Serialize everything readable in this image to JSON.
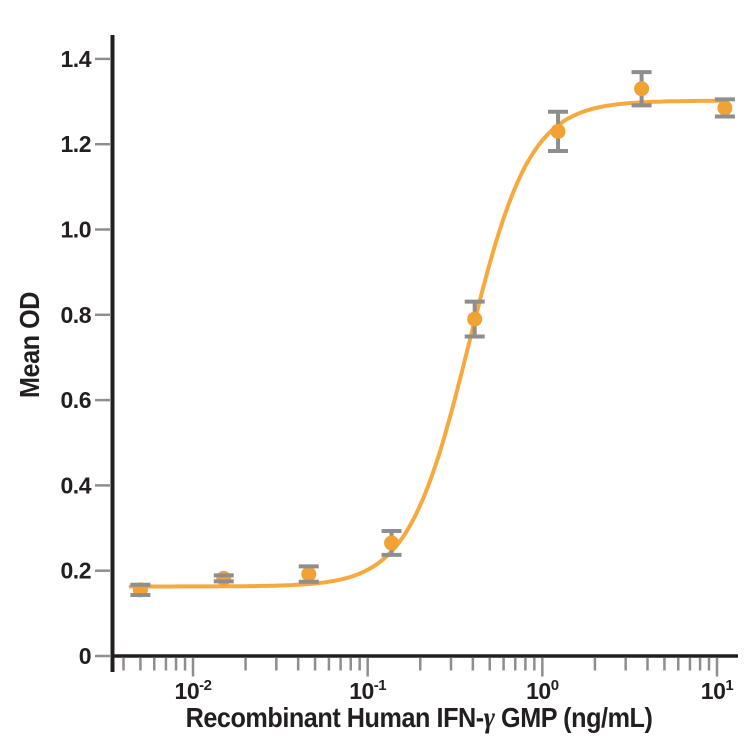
{
  "chart_data": {
    "type": "scatter",
    "title": "",
    "ylabel": "Mean OD",
    "xlabel_prefix": "Recombinant Human IFN-",
    "xlabel_gamma": "γ",
    "xlabel_suffix": " GMP (ng/mL)",
    "x_scale": "log10",
    "x_axis_range": [
      0.0034,
      13.2
    ],
    "x_minor_tick_range": [
      0.004,
      13
    ],
    "x_decade_exponents": [
      -2,
      -1,
      0,
      1
    ],
    "ylim": [
      0,
      1.456
    ],
    "y_ticks": [
      "0",
      "0.2",
      "0.4",
      "0.6",
      "0.8",
      "1.0",
      "1.2",
      "1.4"
    ],
    "grid": false,
    "legend": "none",
    "points": [
      {
        "x": 0.005,
        "mean_od": 0.155,
        "err": 0.012
      },
      {
        "x": 0.015,
        "mean_od": 0.182,
        "err": 0.007
      },
      {
        "x": 0.046,
        "mean_od": 0.192,
        "err": 0.018
      },
      {
        "x": 0.137,
        "mean_od": 0.265,
        "err": 0.028
      },
      {
        "x": 0.41,
        "mean_od": 0.79,
        "err": 0.041
      },
      {
        "x": 1.23,
        "mean_od": 1.23,
        "err": 0.046
      },
      {
        "x": 3.7,
        "mean_od": 1.33,
        "err": 0.039
      },
      {
        "x": 11.1,
        "mean_od": 1.285,
        "err": 0.02
      }
    ],
    "fit_curve": {
      "model": "4PL",
      "bottom": 0.163,
      "top": 1.302,
      "ec50": 0.38,
      "hill": 2.5,
      "x_start": 0.0044,
      "x_end": 11.1
    },
    "colors": {
      "curve": "#F7A93E",
      "marker": "#F2A133",
      "error_bar": "#8E8E8E",
      "axis": "#231F20",
      "tick": "#8E8E8E",
      "text": "#231F20"
    }
  }
}
